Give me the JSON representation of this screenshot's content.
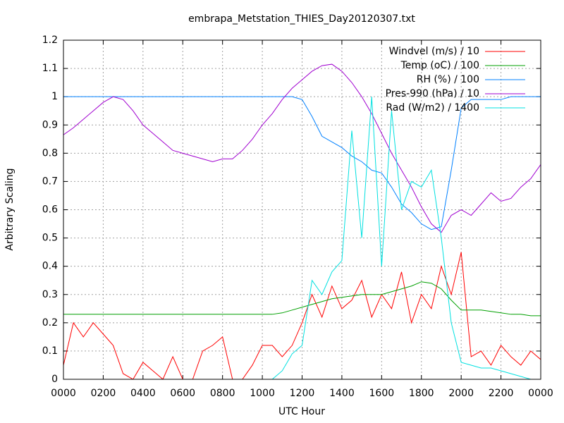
{
  "chart_data": {
    "type": "line",
    "title": "embrapa_Metstation_THIES_Day20120307.txt",
    "x_label": "UTC Hour",
    "y_label": "Arbitrary Scaling",
    "x": [
      0,
      0.5,
      1,
      1.5,
      2,
      2.5,
      3,
      3.5,
      4,
      4.5,
      5,
      5.5,
      6,
      6.5,
      7,
      7.5,
      8,
      8.5,
      9,
      9.5,
      10,
      10.5,
      11,
      11.5,
      12,
      12.5,
      13,
      13.5,
      14,
      14.5,
      15,
      15.5,
      16,
      16.5,
      17,
      17.5,
      18,
      18.5,
      19,
      19.5,
      20,
      20.5,
      21,
      21.5,
      22,
      22.5,
      23,
      23.5,
      24
    ],
    "series": [
      {
        "name": "Windvel (m/s) / 10",
        "color": "#ff0000",
        "values": [
          0.05,
          0.2,
          0.15,
          0.2,
          0.16,
          0.12,
          0.02,
          0,
          0.06,
          0.03,
          0,
          0.08,
          0,
          0,
          0.1,
          0.12,
          0.15,
          0,
          0,
          0.05,
          0.12,
          0.12,
          0.08,
          0.12,
          0.2,
          0.3,
          0.22,
          0.33,
          0.25,
          0.28,
          0.35,
          0.22,
          0.3,
          0.25,
          0.38,
          0.2,
          0.3,
          0.25,
          0.4,
          0.3,
          0.45,
          0.08,
          0.1,
          0.05,
          0.12,
          0.08,
          0.05,
          0.1,
          0.07
        ]
      },
      {
        "name": "Temp (oC) / 100",
        "color": "#00a000",
        "values": [
          0.23,
          0.23,
          0.23,
          0.23,
          0.23,
          0.23,
          0.23,
          0.23,
          0.23,
          0.23,
          0.23,
          0.23,
          0.23,
          0.23,
          0.23,
          0.23,
          0.23,
          0.23,
          0.23,
          0.23,
          0.23,
          0.23,
          0.235,
          0.245,
          0.255,
          0.265,
          0.275,
          0.285,
          0.29,
          0.295,
          0.3,
          0.3,
          0.3,
          0.31,
          0.32,
          0.33,
          0.345,
          0.34,
          0.32,
          0.28,
          0.245,
          0.245,
          0.245,
          0.24,
          0.235,
          0.23,
          0.23,
          0.225,
          0.225
        ]
      },
      {
        "name": "RH (%) / 100",
        "color": "#0080ff",
        "values": [
          1,
          1,
          1,
          1,
          1,
          1,
          1,
          1,
          1,
          1,
          1,
          1,
          1,
          1,
          1,
          1,
          1,
          1,
          1,
          1,
          1,
          1,
          1,
          1,
          0.99,
          0.93,
          0.86,
          0.84,
          0.82,
          0.79,
          0.77,
          0.74,
          0.73,
          0.68,
          0.62,
          0.59,
          0.55,
          0.53,
          0.54,
          0.74,
          0.96,
          0.99,
          0.99,
          0.99,
          0.99,
          1,
          1,
          1,
          1
        ]
      },
      {
        "name": "Pres-990 (hPa) / 10",
        "color": "#a000d0",
        "values": [
          0.865,
          0.89,
          0.92,
          0.95,
          0.98,
          1.0,
          0.99,
          0.95,
          0.9,
          0.87,
          0.84,
          0.81,
          0.8,
          0.79,
          0.78,
          0.77,
          0.78,
          0.78,
          0.81,
          0.85,
          0.9,
          0.94,
          0.99,
          1.03,
          1.06,
          1.09,
          1.11,
          1.115,
          1.09,
          1.05,
          1.0,
          0.94,
          0.87,
          0.8,
          0.74,
          0.68,
          0.61,
          0.55,
          0.52,
          0.58,
          0.6,
          0.58,
          0.62,
          0.66,
          0.63,
          0.64,
          0.68,
          0.71,
          0.76
        ]
      },
      {
        "name": "Rad (W/m2) / 1400",
        "color": "#00e0e0",
        "values": [
          0,
          0,
          0,
          0,
          0,
          0,
          0,
          0,
          0,
          0,
          0,
          0,
          0,
          0,
          0,
          0,
          0,
          0,
          0,
          0,
          0,
          0,
          0.03,
          0.09,
          0.12,
          0.35,
          0.3,
          0.38,
          0.42,
          0.88,
          0.5,
          1.0,
          0.4,
          0.95,
          0.6,
          0.7,
          0.68,
          0.74,
          0.5,
          0.2,
          0.06,
          0.05,
          0.04,
          0.04,
          0.03,
          0.02,
          0.01,
          0,
          0
        ]
      }
    ],
    "xlim": [
      0,
      24
    ],
    "xticks": [
      {
        "value": 0,
        "label": "0000"
      },
      {
        "value": 2,
        "label": "0200"
      },
      {
        "value": 4,
        "label": "0400"
      },
      {
        "value": 6,
        "label": "0600"
      },
      {
        "value": 8,
        "label": "0800"
      },
      {
        "value": 10,
        "label": "1000"
      },
      {
        "value": 12,
        "label": "1200"
      },
      {
        "value": 14,
        "label": "1400"
      },
      {
        "value": 16,
        "label": "1600"
      },
      {
        "value": 18,
        "label": "1800"
      },
      {
        "value": 20,
        "label": "2000"
      },
      {
        "value": 22,
        "label": "2200"
      },
      {
        "value": 24,
        "label": "0000"
      }
    ],
    "ylim": [
      0,
      1.2
    ],
    "yticks": [
      0,
      0.1,
      0.2,
      0.3,
      0.4,
      0.5,
      0.6,
      0.7,
      0.8,
      0.9,
      1,
      1.1,
      1.2
    ],
    "grid": true,
    "legend": "top-right"
  }
}
